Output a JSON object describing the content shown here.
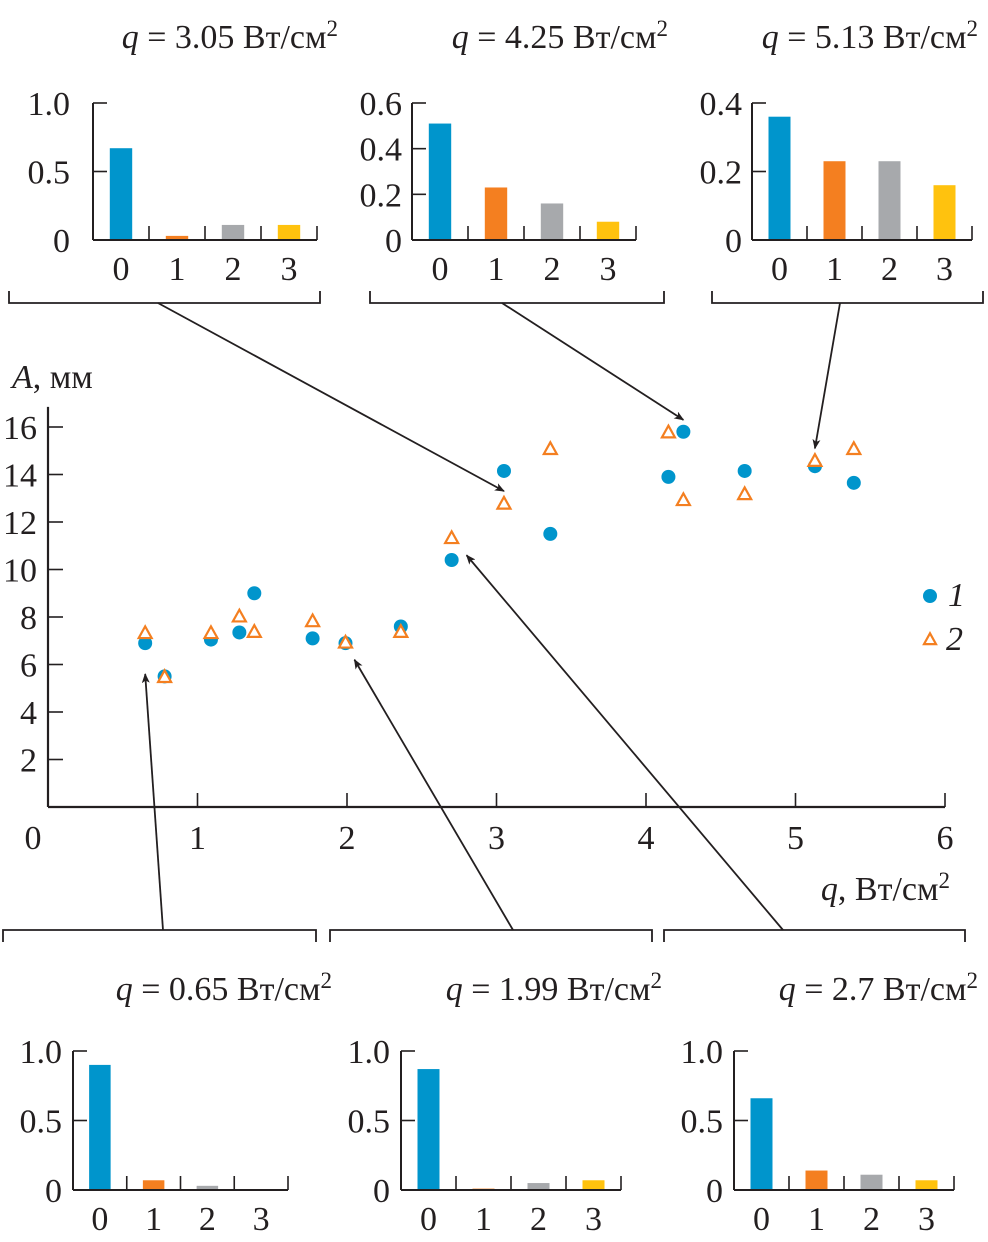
{
  "colors": {
    "series1": "#0095cc",
    "series2": "#f47f20",
    "bar0": "#0095cc",
    "bar1": "#f47f20",
    "bar2": "#a7a9ac",
    "bar3": "#ffc20e",
    "axis": "#231f20"
  },
  "chart_data": [
    {
      "id": "main",
      "type": "scatter",
      "title": "",
      "xlabel_var": "q",
      "xlabel_unit": ", Вт/см",
      "xlabel_sup": "2",
      "ylabel_var": "A",
      "ylabel_unit": ", мм",
      "xlim": [
        0,
        6
      ],
      "ylim": [
        0,
        17
      ],
      "xticks": [
        "0",
        "1",
        "2",
        "3",
        "4",
        "5",
        "6"
      ],
      "yticks": [
        "2",
        "4",
        "6",
        "8",
        "10",
        "12",
        "14",
        "16"
      ],
      "grid": false,
      "legend": {
        "placement": "right",
        "entries": [
          {
            "label": "1",
            "marker": "filled-circle"
          },
          {
            "label": "2",
            "marker": "open-triangle"
          }
        ]
      },
      "series": [
        {
          "name": "1",
          "marker": "filled-circle",
          "x": [
            0.65,
            0.78,
            1.09,
            1.28,
            1.38,
            1.77,
            1.99,
            2.36,
            2.7,
            3.05,
            3.36,
            4.15,
            4.25,
            4.66,
            5.13,
            5.39
          ],
          "y": [
            6.9,
            5.5,
            7.05,
            7.35,
            9.0,
            7.1,
            6.9,
            7.6,
            10.4,
            14.15,
            11.5,
            13.9,
            15.8,
            14.15,
            14.35,
            13.65
          ]
        },
        {
          "name": "2",
          "marker": "open-triangle",
          "x": [
            0.65,
            0.78,
            1.09,
            1.28,
            1.38,
            1.77,
            1.99,
            2.36,
            2.7,
            3.05,
            3.36,
            4.15,
            4.25,
            4.66,
            5.13,
            5.39
          ],
          "y": [
            7.3,
            5.45,
            7.3,
            8.0,
            7.35,
            7.8,
            6.9,
            7.35,
            11.3,
            12.75,
            15.05,
            15.75,
            12.9,
            13.15,
            14.55,
            15.05
          ]
        }
      ]
    },
    {
      "id": "inset-3.05",
      "type": "bar",
      "q_value": 3.05,
      "position": "top-left",
      "title_var": "q",
      "title_text": " = 3.05 Вт/см",
      "title_sup": "2",
      "categories": [
        "0",
        "1",
        "2",
        "3"
      ],
      "values": [
        0.67,
        0.03,
        0.11,
        0.11
      ],
      "ylim": [
        0,
        1.0
      ],
      "yticks": [
        "0",
        "0.5",
        "1.0"
      ],
      "ytick_values": [
        0,
        0.5,
        1.0
      ],
      "arrow_target": {
        "x": 3.05,
        "y": 13.3
      }
    },
    {
      "id": "inset-4.25",
      "type": "bar",
      "q_value": 4.25,
      "position": "top-center",
      "title_var": "q",
      "title_text": " = 4.25 Вт/см",
      "title_sup": "2",
      "categories": [
        "0",
        "1",
        "2",
        "3"
      ],
      "values": [
        0.51,
        0.23,
        0.16,
        0.08
      ],
      "ylim": [
        0,
        0.6
      ],
      "yticks": [
        "0",
        "0.2",
        "0.4",
        "0.6"
      ],
      "ytick_values": [
        0,
        0.2,
        0.4,
        0.6
      ],
      "arrow_target": {
        "x": 4.25,
        "y": 16.3
      }
    },
    {
      "id": "inset-5.13",
      "type": "bar",
      "q_value": 5.13,
      "position": "top-right",
      "title_var": "q",
      "title_text": " = 5.13 Вт/см",
      "title_sup": "2",
      "categories": [
        "0",
        "1",
        "2",
        "3"
      ],
      "values": [
        0.36,
        0.23,
        0.23,
        0.16
      ],
      "ylim": [
        0,
        0.4
      ],
      "yticks": [
        "0",
        "0.2",
        "0.4"
      ],
      "ytick_values": [
        0,
        0.2,
        0.4
      ],
      "arrow_target": {
        "x": 5.13,
        "y": 15.1
      }
    },
    {
      "id": "inset-0.65",
      "type": "bar",
      "q_value": 0.65,
      "position": "bottom-left",
      "title_var": "q",
      "title_text": " = 0.65 Вт/см",
      "title_sup": "2",
      "categories": [
        "0",
        "1",
        "2",
        "3"
      ],
      "values": [
        0.9,
        0.07,
        0.03,
        0.0
      ],
      "ylim": [
        0,
        1.0
      ],
      "yticks": [
        "0",
        "0.5",
        "1.0"
      ],
      "ytick_values": [
        0,
        0.5,
        1.0
      ],
      "arrow_target": {
        "x": 0.65,
        "y": 5.6
      }
    },
    {
      "id": "inset-1.99",
      "type": "bar",
      "q_value": 1.99,
      "position": "bottom-center",
      "title_var": "q",
      "title_text": " = 1.99 Вт/см",
      "title_sup": "2",
      "categories": [
        "0",
        "1",
        "2",
        "3"
      ],
      "values": [
        0.87,
        0.01,
        0.05,
        0.07
      ],
      "ylim": [
        0,
        1.0
      ],
      "yticks": [
        "0",
        "0.5",
        "1.0"
      ],
      "ytick_values": [
        0,
        0.5,
        1.0
      ],
      "arrow_target": {
        "x": 2.05,
        "y": 6.2
      }
    },
    {
      "id": "inset-2.7",
      "type": "bar",
      "q_value": 2.7,
      "position": "bottom-right",
      "title_var": "q",
      "title_text": " = 2.7 Вт/см",
      "title_sup": "2",
      "categories": [
        "0",
        "1",
        "2",
        "3"
      ],
      "values": [
        0.66,
        0.14,
        0.11,
        0.07
      ],
      "ylim": [
        0,
        1.0
      ],
      "yticks": [
        "0",
        "0.5",
        "1.0"
      ],
      "ytick_values": [
        0,
        0.5,
        1.0
      ],
      "arrow_target": {
        "x": 2.8,
        "y": 10.6
      }
    }
  ]
}
